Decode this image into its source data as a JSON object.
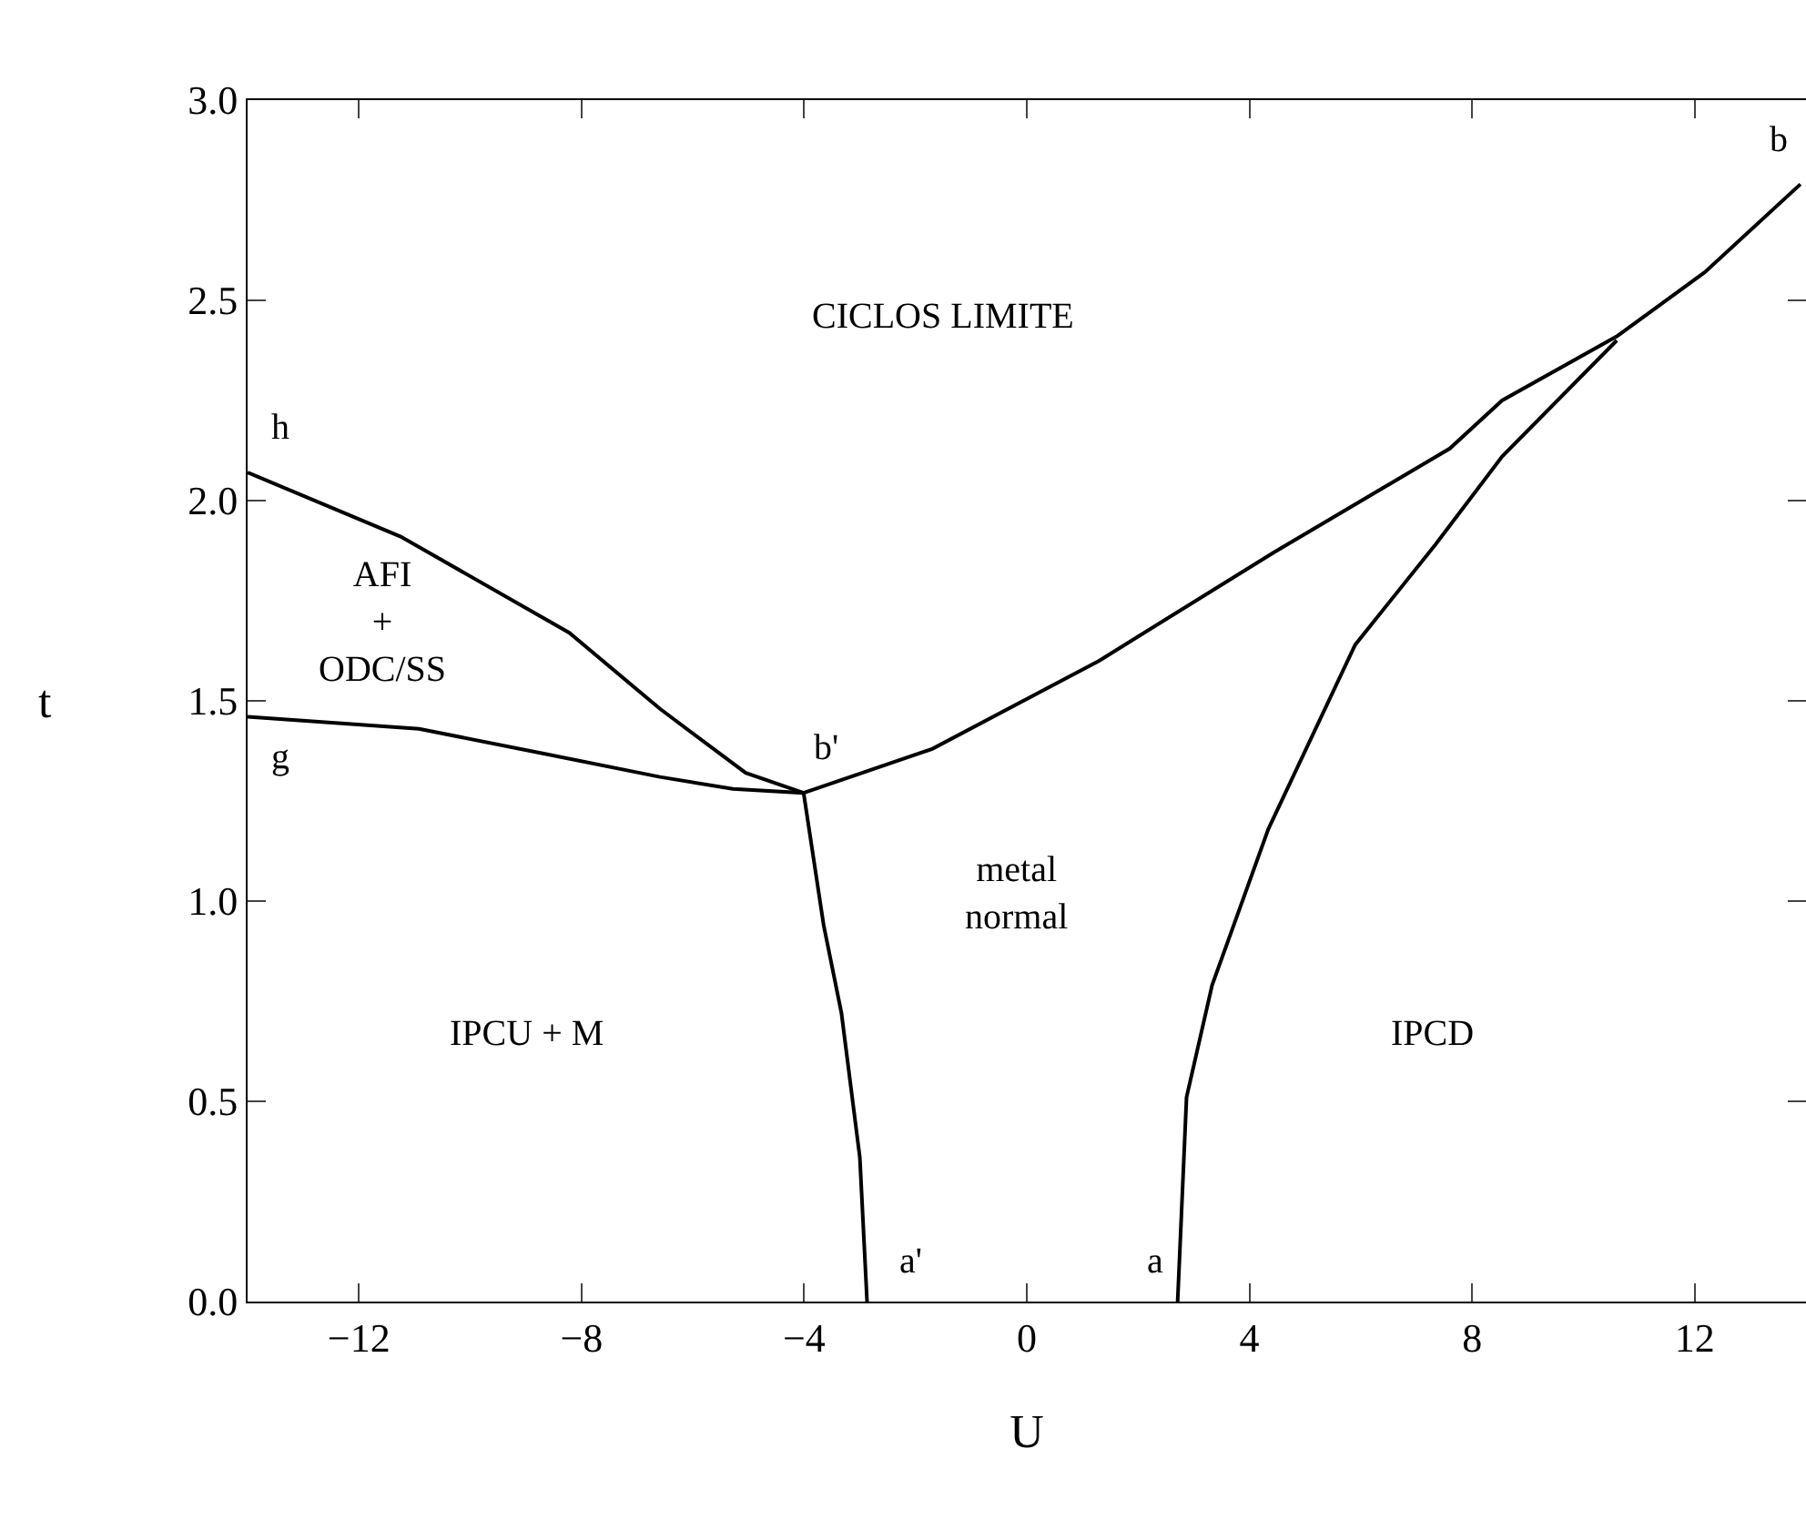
{
  "chart_data": {
    "type": "line",
    "xlabel": "U",
    "ylabel": "t",
    "xlim": [
      -14,
      14
    ],
    "ylim": [
      0,
      3
    ],
    "xticks": [
      {
        "value": -12,
        "label": "−12"
      },
      {
        "value": -8,
        "label": "−8"
      },
      {
        "value": -4,
        "label": "−4"
      },
      0,
      4,
      8,
      12
    ],
    "yticks": [
      {
        "value": 0,
        "label": "0.0"
      },
      0.5,
      {
        "value": 1,
        "label": "1.0"
      },
      1.5,
      {
        "value": 2,
        "label": "2.0"
      },
      2.5,
      {
        "value": 3,
        "label": "3.0"
      }
    ],
    "grid": false,
    "marker": "none",
    "line_style": "solid",
    "series": [
      {
        "color": "#000000",
        "x": [
          -14,
          -11.25,
          -8.22,
          -6.59,
          -5.05,
          -4.01,
          -1.7,
          1.3,
          4.43,
          7.6,
          8.54,
          10.6,
          12.18,
          13.9
        ],
        "values": [
          2.07,
          1.91,
          1.67,
          1.48,
          1.32,
          1.27,
          1.38,
          1.6,
          1.87,
          2.13,
          2.25,
          2.41,
          2.57,
          2.79
        ]
      },
      {
        "color": "#000000",
        "x": [
          -14,
          -10.92,
          -8.74,
          -6.59,
          -5.28,
          -4.01,
          -3.65,
          -3.33,
          -3.0,
          -2.87
        ],
        "values": [
          1.46,
          1.43,
          1.37,
          1.31,
          1.28,
          1.27,
          0.94,
          0.72,
          0.36,
          0
        ]
      },
      {
        "color": "#000000",
        "x": [
          2.71,
          2.87,
          3.33,
          4.34,
          5.9,
          7.34,
          8.54,
          10.6
        ],
        "values": [
          0,
          0.51,
          0.79,
          1.18,
          1.64,
          1.89,
          2.11,
          2.4
        ]
      }
    ],
    "annotations": [
      "CICLOS LIMITE",
      "AFI\n+\nODC/SS",
      "metal\nnormal",
      "IPCU + M",
      "IPCD",
      "h",
      "g",
      "b'",
      "b",
      "a'",
      "a"
    ]
  }
}
